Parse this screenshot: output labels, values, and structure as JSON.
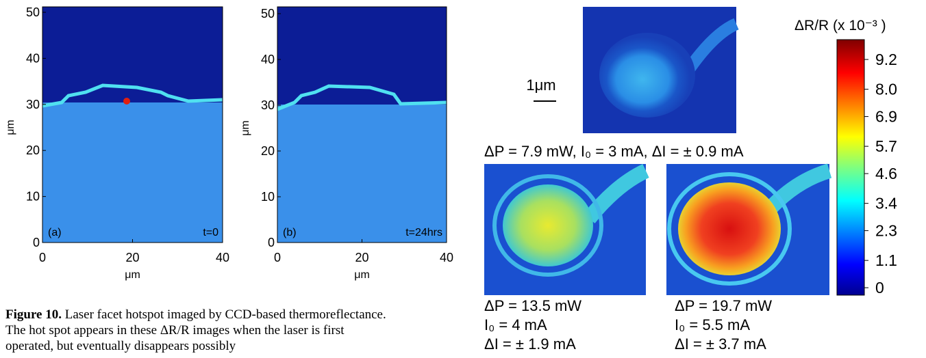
{
  "figure": {
    "panels": [
      {
        "label": "(a)",
        "time": "t=0",
        "xlabel": "μm",
        "ylabel": "μm",
        "xlim": [
          0,
          40
        ],
        "ylim": [
          0,
          50
        ],
        "xticks": [
          0,
          20,
          40
        ],
        "yticks": [
          0,
          10,
          20,
          30,
          40,
          50
        ]
      },
      {
        "label": "(b)",
        "time": "t=24hrs",
        "xlabel": "μm",
        "ylabel": "μm",
        "xlim": [
          0,
          40
        ],
        "ylim": [
          0,
          50
        ],
        "xticks": [
          0,
          20,
          40
        ],
        "yticks": [
          0,
          10,
          20,
          30,
          40,
          50
        ]
      }
    ],
    "scale_bar": "1μm",
    "top_caption": "ΔP = 7.9 mW, I₀ = 3 mA, ΔI = ± 0.9 mA",
    "bottom_captions": [
      [
        "ΔP = 13.5 mW",
        "I₀ = 4 mA",
        "ΔI = ± 1.9 mA"
      ],
      [
        "ΔP = 19.7 mW",
        "I₀ = 5.5 mA",
        "ΔI = ± 3.7 mA"
      ]
    ],
    "colorbar": {
      "title": "ΔR/R (x 10⁻³ )",
      "lim": [
        -0.3,
        10
      ],
      "ticks": [
        0,
        1.1,
        2.3,
        3.4,
        4.6,
        5.7,
        6.9,
        {
          "value": 8,
          "label": "8.0"
        },
        9.2
      ]
    }
  },
  "caption": {
    "label": "Figure 10.",
    "text": "Laser facet hotspot imaged by CCD-based thermoreflectance. The hot spot appears in these ΔR/R images when the laser is first operated, but eventually disappears possibly"
  }
}
